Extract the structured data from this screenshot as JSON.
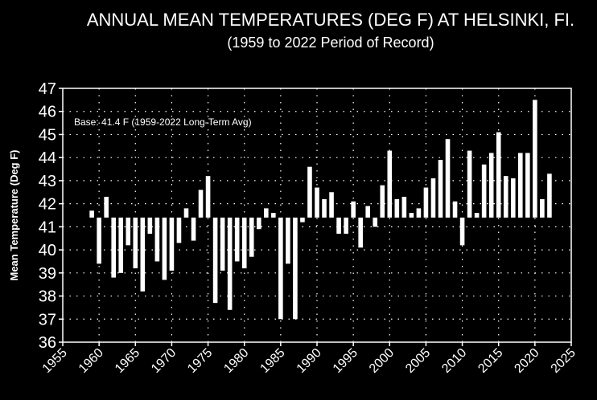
{
  "chart_data": {
    "type": "bar",
    "title": "ANNUAL MEAN TEMPERATURES (DEG F) AT HELSINKI, FI.",
    "subtitle": "(1959 to 2022 Period of Record)",
    "xlabel": "",
    "ylabel": "Mean Temperature (Deg F)",
    "annotation": "Base: 41.4 F (1959-2022 Long-Term Avg)",
    "base": 41.4,
    "xlim": [
      1955,
      2025
    ],
    "ylim": [
      36,
      47
    ],
    "xticks": [
      1955,
      1960,
      1965,
      1970,
      1975,
      1980,
      1985,
      1990,
      1995,
      2000,
      2005,
      2010,
      2015,
      2020,
      2025
    ],
    "yticks": [
      36,
      37,
      38,
      39,
      40,
      41,
      42,
      43,
      44,
      45,
      46,
      47
    ],
    "grid": true,
    "colors": {
      "background": "#000000",
      "bars": "#ffffff",
      "grid": "#ffffff",
      "axes": "#ffffff",
      "text": "#ffffff"
    },
    "x": [
      1959,
      1960,
      1961,
      1962,
      1963,
      1964,
      1965,
      1966,
      1967,
      1968,
      1969,
      1970,
      1971,
      1972,
      1973,
      1974,
      1975,
      1976,
      1977,
      1978,
      1979,
      1980,
      1981,
      1982,
      1983,
      1984,
      1985,
      1986,
      1987,
      1988,
      1989,
      1990,
      1991,
      1992,
      1993,
      1994,
      1995,
      1996,
      1997,
      1998,
      1999,
      2000,
      2001,
      2002,
      2003,
      2004,
      2005,
      2006,
      2007,
      2008,
      2009,
      2010,
      2011,
      2012,
      2013,
      2014,
      2015,
      2016,
      2017,
      2018,
      2019,
      2020,
      2021,
      2022
    ],
    "values": [
      41.7,
      39.4,
      42.3,
      38.8,
      39.0,
      40.2,
      39.2,
      38.2,
      40.7,
      39.5,
      38.7,
      39.1,
      40.3,
      41.8,
      40.4,
      42.6,
      43.2,
      37.7,
      39.1,
      37.4,
      39.5,
      39.2,
      39.7,
      40.9,
      41.8,
      41.6,
      37.0,
      39.4,
      37.0,
      41.2,
      43.6,
      42.7,
      42.2,
      42.5,
      40.7,
      40.7,
      42.1,
      40.1,
      41.9,
      41.0,
      42.8,
      44.3,
      42.2,
      42.3,
      41.6,
      41.8,
      42.7,
      43.1,
      43.9,
      44.8,
      42.1,
      40.2,
      44.3,
      41.6,
      43.7,
      44.2,
      45.1,
      43.2,
      43.1,
      44.2,
      44.2,
      46.5,
      42.2,
      43.3
    ]
  }
}
